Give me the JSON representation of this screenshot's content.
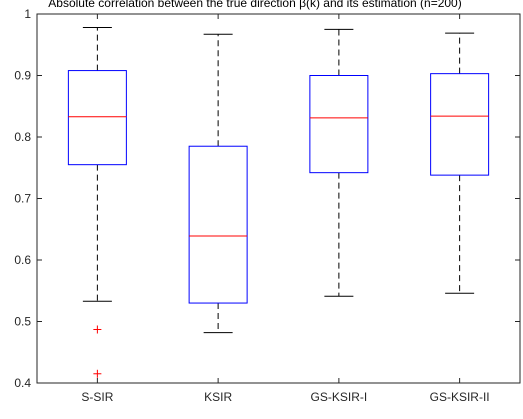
{
  "chart_data": {
    "type": "box",
    "title": "Absolute correlation between the true direction β(k) and its estimation (n=200)",
    "xlabel": "",
    "ylabel": "",
    "ylim": [
      0.4,
      1.0
    ],
    "yticks": [
      0.4,
      0.5,
      0.6,
      0.7,
      0.8,
      0.9,
      1
    ],
    "ytick_labels": [
      "0.4",
      "0.5",
      "0.6",
      "0.7",
      "0.8",
      "0.9",
      "1"
    ],
    "grid": false,
    "colors": {
      "box": "#0000ff",
      "median": "#ff0000",
      "whisker": "#000000",
      "outlier": "#ff0000",
      "axis": "#262626"
    },
    "series": [
      {
        "category": "S-SIR",
        "whisker_low": 0.533,
        "q1": 0.755,
        "median": 0.833,
        "q3": 0.908,
        "whisker_high": 0.978,
        "outliers": [
          0.487,
          0.415
        ]
      },
      {
        "category": "KSIR",
        "whisker_low": 0.482,
        "q1": 0.53,
        "median": 0.639,
        "q3": 0.785,
        "whisker_high": 0.967,
        "outliers": []
      },
      {
        "category": "GS-KSIR-I",
        "whisker_low": 0.541,
        "q1": 0.742,
        "median": 0.831,
        "q3": 0.9,
        "whisker_high": 0.975,
        "outliers": []
      },
      {
        "category": "GS-KSIR-II",
        "whisker_low": 0.546,
        "q1": 0.738,
        "median": 0.834,
        "q3": 0.903,
        "whisker_high": 0.969,
        "outliers": []
      }
    ]
  }
}
